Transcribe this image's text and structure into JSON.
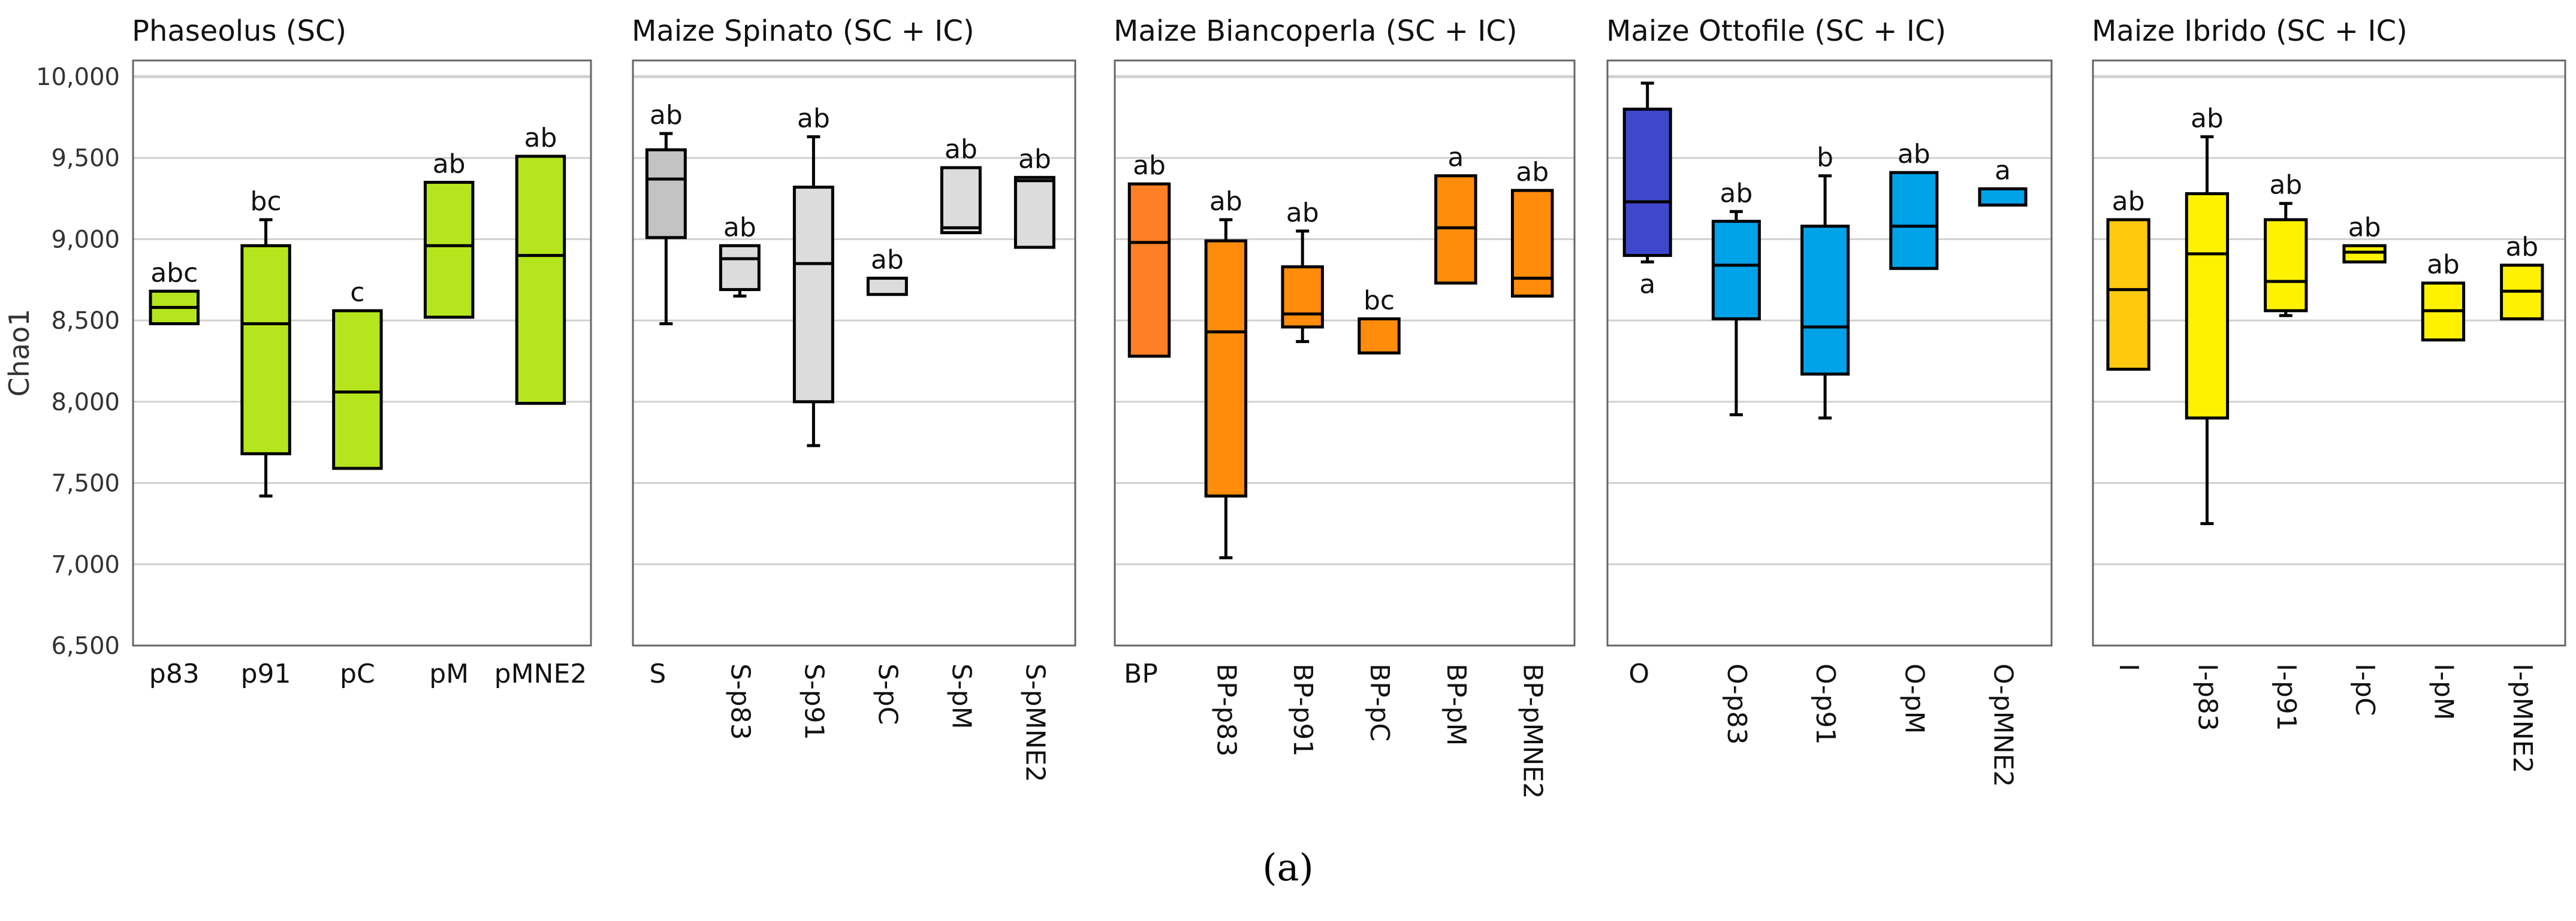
{
  "chart_data": {
    "type": "box",
    "ylabel": "Chao1",
    "ylim": [
      6500,
      10000
    ],
    "yticks": [
      "6,500",
      "7,000",
      "7,500",
      "8,000",
      "8,500",
      "9,000",
      "9,500",
      "10,000"
    ],
    "ytick_values": [
      6500,
      7000,
      7500,
      8000,
      8500,
      9000,
      9500,
      10000
    ],
    "grid": true,
    "caption": "(a)",
    "panels": [
      {
        "title": "Phaseolus (SC)",
        "rotate_labels": false,
        "groups": [
          {
            "label": "p83",
            "letter": "abc",
            "color": "#b5e61d",
            "q1": 8480,
            "median": 8580,
            "q3": 8680,
            "min": null,
            "max": null
          },
          {
            "label": "p91",
            "letter": "bc",
            "color": "#b5e61d",
            "q1": 7680,
            "median": 8480,
            "q3": 8960,
            "min": 7420,
            "max": 9120
          },
          {
            "label": "pC",
            "letter": "c",
            "color": "#b5e61d",
            "q1": 7590,
            "median": 8060,
            "q3": 8560,
            "min": null,
            "max": null
          },
          {
            "label": "pM",
            "letter": "ab",
            "color": "#b5e61d",
            "q1": 8520,
            "median": 8960,
            "q3": 9350,
            "min": null,
            "max": null
          },
          {
            "label": "pMNE2",
            "letter": "ab",
            "color": "#b5e61d",
            "q1": 7990,
            "median": 8900,
            "q3": 9510,
            "min": null,
            "max": null
          }
        ]
      },
      {
        "title": "Maize Spinato (SC + IC)",
        "rotate_labels": true,
        "groups": [
          {
            "label": "S",
            "letter": "ab",
            "color": "#c3c3c3",
            "q1": 9010,
            "median": 9370,
            "q3": 9550,
            "min": 8480,
            "max": 9650
          },
          {
            "label": "S-p83",
            "letter": "ab",
            "color": "#dcdcdc",
            "q1": 8690,
            "median": 8880,
            "q3": 8960,
            "min": 8650,
            "max": null
          },
          {
            "label": "S-p91",
            "letter": "ab",
            "color": "#dcdcdc",
            "q1": 8000,
            "median": 8850,
            "q3": 9320,
            "min": 7730,
            "max": 9630
          },
          {
            "label": "S-pC",
            "letter": "ab",
            "color": "#dcdcdc",
            "q1": 8660,
            "median": null,
            "q3": 8760,
            "min": null,
            "max": null
          },
          {
            "label": "S-pM",
            "letter": "ab",
            "color": "#dcdcdc",
            "q1": 9040,
            "median": 9070,
            "q3": 9440,
            "min": null,
            "max": null
          },
          {
            "label": "S-pMNE2",
            "letter": "ab",
            "color": "#dcdcdc",
            "q1": 8950,
            "median": 9360,
            "q3": 9380,
            "min": null,
            "max": null
          }
        ]
      },
      {
        "title": "Maize Biancoperla (SC + IC)",
        "rotate_labels": true,
        "groups": [
          {
            "label": "BP",
            "letter": "ab",
            "color": "#ff7f27",
            "q1": 8280,
            "median": 8980,
            "q3": 9340,
            "min": null,
            "max": null
          },
          {
            "label": "BP-p83",
            "letter": "ab",
            "color": "#ff8c0a",
            "q1": 7420,
            "median": 8430,
            "q3": 8990,
            "min": 7040,
            "max": 9120
          },
          {
            "label": "BP-p91",
            "letter": "ab",
            "color": "#ff8c0a",
            "q1": 8460,
            "median": 8540,
            "q3": 8830,
            "min": 8370,
            "max": 9050
          },
          {
            "label": "BP-pC",
            "letter": "bc",
            "color": "#ff8c0a",
            "q1": 8300,
            "median": null,
            "q3": 8510,
            "min": null,
            "max": null
          },
          {
            "label": "BP-pM",
            "letter": "a",
            "color": "#ff8c0a",
            "q1": 8730,
            "median": 9070,
            "q3": 9390,
            "min": null,
            "max": null
          },
          {
            "label": "BP-pMNE2",
            "letter": "ab",
            "color": "#ff8c0a",
            "q1": 8650,
            "median": 8760,
            "q3": 9300,
            "min": null,
            "max": null
          }
        ]
      },
      {
        "title": "Maize Ottofile (SC + IC)",
        "rotate_labels": true,
        "groups": [
          {
            "label": "O",
            "letter": "a",
            "letter_below": true,
            "color": "#3f48cc",
            "q1": 8900,
            "median": 9230,
            "q3": 9800,
            "min": 8860,
            "max": 9960
          },
          {
            "label": "O-p83",
            "letter": "ab",
            "color": "#00a2e8",
            "q1": 8510,
            "median": 8840,
            "q3": 9110,
            "min": 7920,
            "max": 9170
          },
          {
            "label": "O-p91",
            "letter": "b",
            "color": "#00a2e8",
            "q1": 8170,
            "median": 8460,
            "q3": 9080,
            "min": 7900,
            "max": 9390
          },
          {
            "label": "O-pM",
            "letter": "ab",
            "color": "#00a2e8",
            "q1": 8820,
            "median": 9080,
            "q3": 9410,
            "min": null,
            "max": null
          },
          {
            "label": "O-pMNE2",
            "letter": "a",
            "color": "#00a2e8",
            "q1": 9210,
            "median": null,
            "q3": 9310,
            "min": null,
            "max": null
          }
        ]
      },
      {
        "title": "Maize Ibrido (SC + IC)",
        "rotate_labels": true,
        "groups": [
          {
            "label": "I",
            "letter": "ab",
            "color": "#ffc90e",
            "q1": 8200,
            "median": 8690,
            "q3": 9120,
            "min": null,
            "max": null
          },
          {
            "label": "I-p83",
            "letter": "ab",
            "color": "#fff200",
            "q1": 7900,
            "median": 8910,
            "q3": 9280,
            "min": 7250,
            "max": 9630
          },
          {
            "label": "I-p91",
            "letter": "ab",
            "color": "#fff200",
            "q1": 8560,
            "median": 8740,
            "q3": 9120,
            "min": 8530,
            "max": 9220
          },
          {
            "label": "I-pC",
            "letter": "ab",
            "color": "#fff200",
            "q1": 8860,
            "median": 8920,
            "q3": 8960,
            "min": null,
            "max": null
          },
          {
            "label": "I-pM",
            "letter": "ab",
            "color": "#fff200",
            "q1": 8380,
            "median": 8560,
            "q3": 8730,
            "min": null,
            "max": null
          },
          {
            "label": "I-pMNE2",
            "letter": "ab",
            "color": "#fff200",
            "q1": 8510,
            "median": 8680,
            "q3": 8840,
            "min": null,
            "max": null
          }
        ]
      }
    ]
  }
}
